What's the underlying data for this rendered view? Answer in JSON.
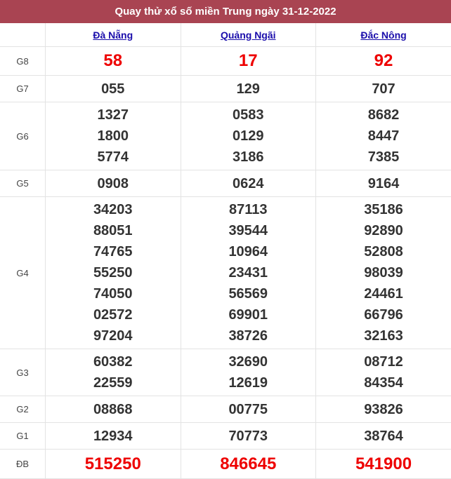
{
  "title": "Quay thử xổ số miền Trung ngày 31-12-2022",
  "provinces": [
    "Đà Nẵng",
    "Quảng Ngãi",
    "Đắc Nông"
  ],
  "colors": {
    "header": "#a94452",
    "special": "#ee0000",
    "link": "#1a0dab"
  },
  "rows": [
    {
      "label": "G8",
      "values": [
        [
          "58"
        ],
        [
          "17"
        ],
        [
          "92"
        ]
      ]
    },
    {
      "label": "G7",
      "values": [
        [
          "055"
        ],
        [
          "129"
        ],
        [
          "707"
        ]
      ]
    },
    {
      "label": "G6",
      "values": [
        [
          "1327",
          "1800",
          "5774"
        ],
        [
          "0583",
          "0129",
          "3186"
        ],
        [
          "8682",
          "8447",
          "7385"
        ]
      ]
    },
    {
      "label": "G5",
      "values": [
        [
          "0908"
        ],
        [
          "0624"
        ],
        [
          "9164"
        ]
      ]
    },
    {
      "label": "G4",
      "values": [
        [
          "34203",
          "88051",
          "74765",
          "55250",
          "74050",
          "02572",
          "97204"
        ],
        [
          "87113",
          "39544",
          "10964",
          "23431",
          "56569",
          "69901",
          "38726"
        ],
        [
          "35186",
          "92890",
          "52808",
          "98039",
          "24461",
          "66796",
          "32163"
        ]
      ]
    },
    {
      "label": "G3",
      "values": [
        [
          "60382",
          "22559"
        ],
        [
          "32690",
          "12619"
        ],
        [
          "08712",
          "84354"
        ]
      ]
    },
    {
      "label": "G2",
      "values": [
        [
          "08868"
        ],
        [
          "00775"
        ],
        [
          "93826"
        ]
      ]
    },
    {
      "label": "G1",
      "values": [
        [
          "12934"
        ],
        [
          "70773"
        ],
        [
          "38764"
        ]
      ]
    },
    {
      "label": "ĐB",
      "values": [
        [
          "515250"
        ],
        [
          "846645"
        ],
        [
          "541900"
        ]
      ]
    }
  ]
}
